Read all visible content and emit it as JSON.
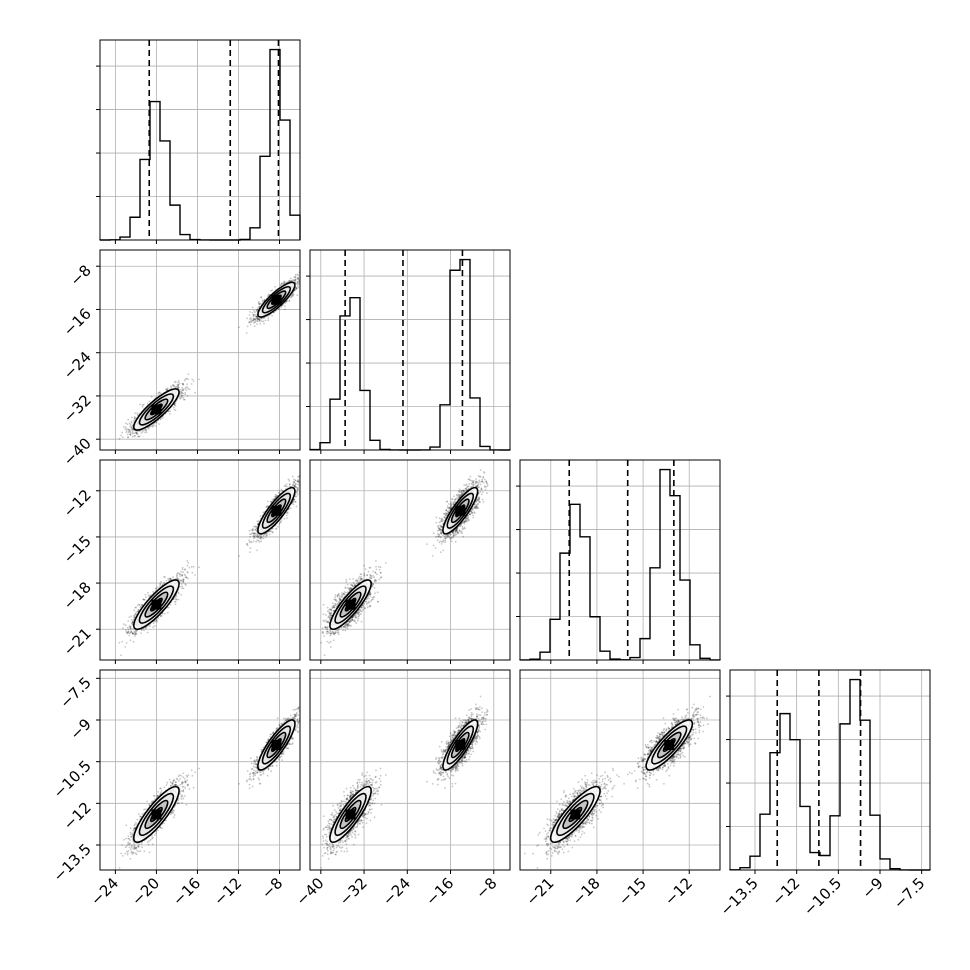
{
  "chart_data": {
    "type": "corner",
    "grid": true,
    "params": [
      {
        "range": [
          -25.5,
          -6.0
        ],
        "ticks": [
          -24,
          -20,
          -16,
          -12,
          -8
        ],
        "modes": [
          [
            -20.0,
            1.1
          ],
          [
            -8.3,
            0.9
          ]
        ],
        "weights": [
          0.47,
          0.53
        ],
        "quantiles": [
          -20.7,
          -12.8,
          -8.1
        ]
      },
      {
        "range": [
          -42.0,
          -5.0
        ],
        "ticks": [
          -40,
          -32,
          -24,
          -16,
          -8
        ],
        "modes": [
          [
            -34.5,
            1.9
          ],
          [
            -14.2,
            1.6
          ]
        ],
        "weights": [
          0.47,
          0.53
        ],
        "quantiles": [
          -35.5,
          -24.8,
          -13.8
        ]
      },
      {
        "range": [
          -23.0,
          -10.0
        ],
        "ticks": [
          -21,
          -18,
          -15,
          -12
        ],
        "modes": [
          [
            -19.4,
            0.8
          ],
          [
            -13.3,
            0.75
          ]
        ],
        "weights": [
          0.47,
          0.53
        ],
        "quantiles": [
          -19.8,
          -16.0,
          -13.0
        ]
      },
      {
        "range": [
          -14.4,
          -7.2
        ],
        "ticks": [
          -13.5,
          -12.0,
          -10.5,
          -9.0,
          -7.5
        ],
        "modes": [
          [
            -12.4,
            0.5
          ],
          [
            -9.9,
            0.45
          ]
        ],
        "weights": [
          0.47,
          0.53
        ],
        "quantiles": [
          -12.7,
          -11.2,
          -9.7
        ]
      }
    ],
    "correlation": 0.85
  }
}
